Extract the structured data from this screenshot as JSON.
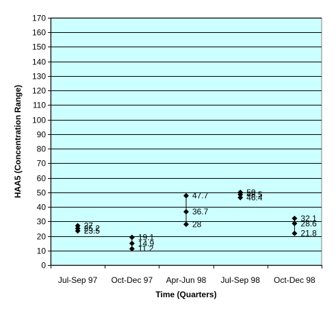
{
  "chart_data": {
    "type": "scatter",
    "title": "",
    "xlabel": "Time (Quarters)",
    "ylabel": "HAA5 (Concentration Range)",
    "categories": [
      "Jul-Sep 97",
      "Oct-Dec 97",
      "Apr-Jun 98",
      "Jul-Sep 98",
      "Oct-Dec 98"
    ],
    "ylim": [
      0,
      170
    ],
    "y_ticks": [
      0,
      10,
      20,
      30,
      40,
      50,
      60,
      70,
      80,
      90,
      100,
      110,
      120,
      130,
      140,
      150,
      160,
      170
    ],
    "grid": true,
    "legend": "none",
    "plot_background": "#ccffff",
    "marker_color": "#000000",
    "points": [
      {
        "category": "Jul-Sep 97",
        "values": [
          27,
          25.2,
          23.5
        ],
        "labels": [
          "27",
          "25.2",
          "23.5"
        ]
      },
      {
        "category": "Oct-Dec 97",
        "values": [
          19.1,
          14.9,
          11.2
        ],
        "labels": [
          "19.1",
          "14.9",
          "11.2"
        ]
      },
      {
        "category": "Apr-Jun 98",
        "values": [
          47.7,
          36.7,
          28
        ],
        "labels": [
          "47.7",
          "36.7",
          "28"
        ]
      },
      {
        "category": "Jul-Sep 98",
        "values": [
          50,
          48.5,
          46.4
        ],
        "labels": [
          "50",
          "48.5",
          "46.4"
        ]
      },
      {
        "category": "Oct-Dec 98",
        "values": [
          32.1,
          28.6,
          21.8
        ],
        "labels": [
          "32.1",
          "28.6",
          "21.8"
        ]
      }
    ]
  }
}
